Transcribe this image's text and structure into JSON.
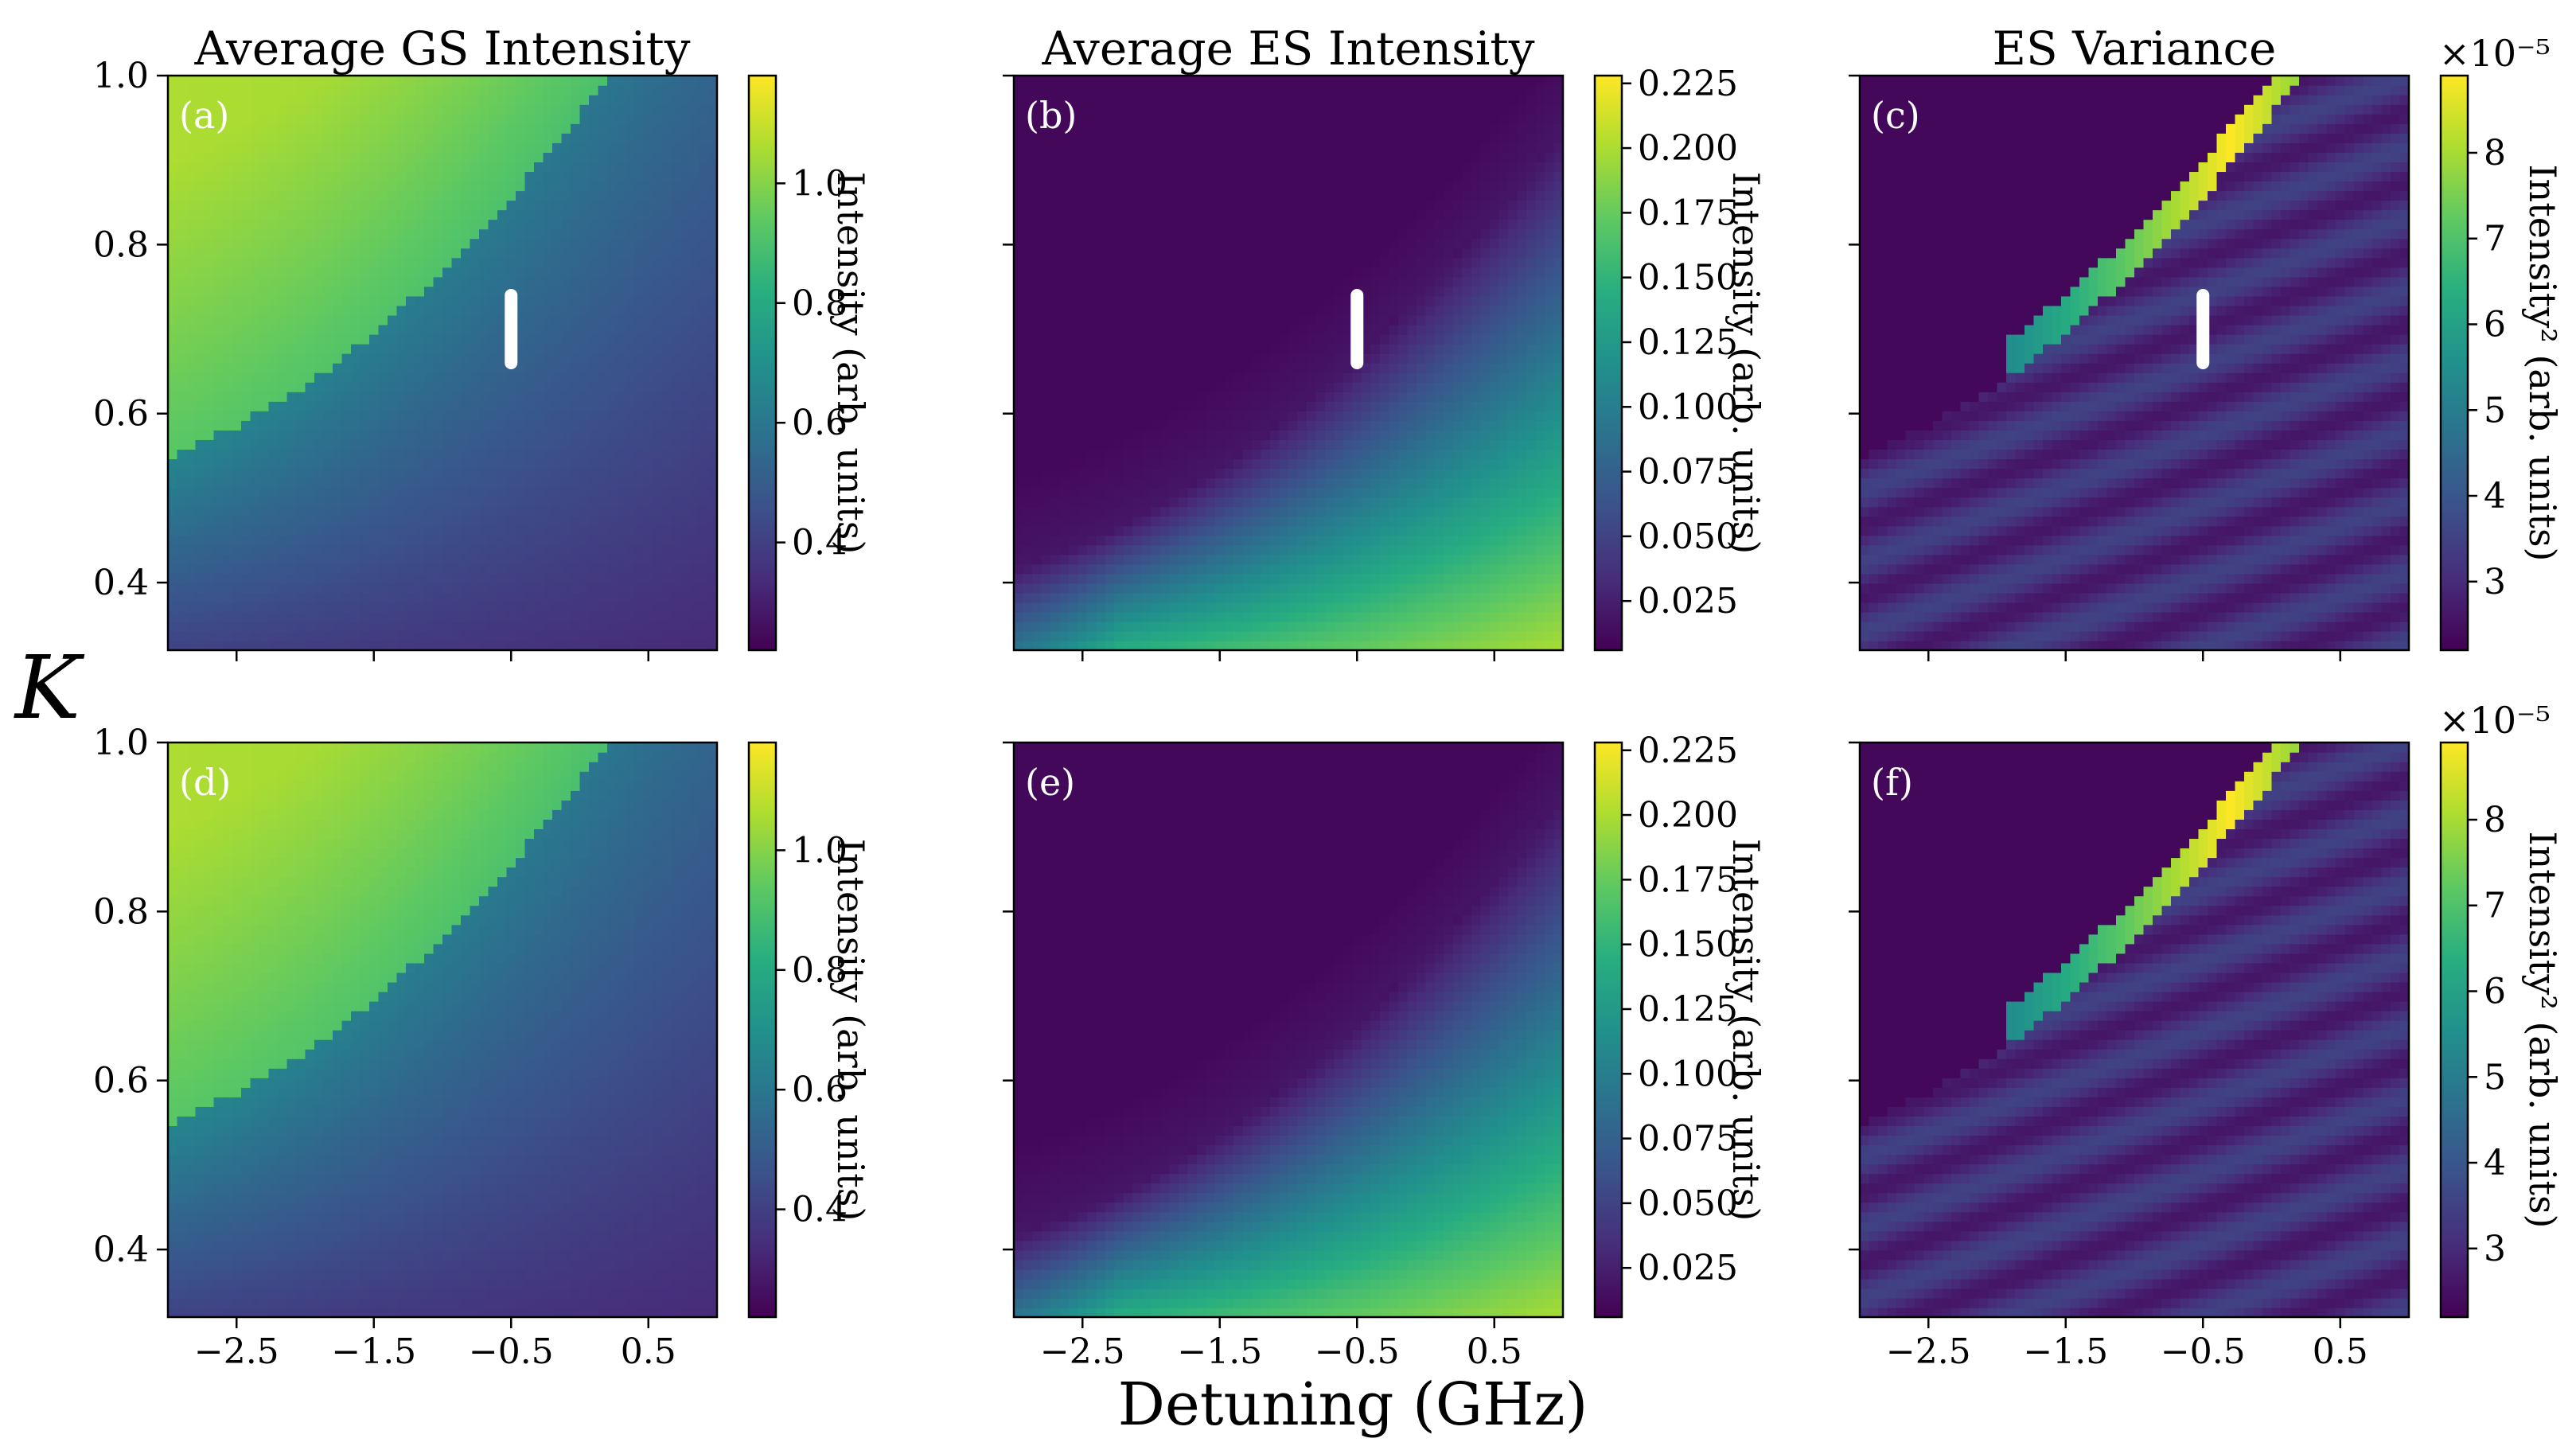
{
  "figure": {
    "y_axis_label": "K",
    "x_axis_label": "Detuning (GHz)"
  },
  "chart_data": [
    {
      "id": "a",
      "type": "heatmap",
      "title": "Average GS Intensity",
      "panel_label": "(a)",
      "map": "gs",
      "marker": true,
      "x_range": [
        -3.0,
        1.0
      ],
      "y_range": [
        0.32,
        1.0
      ],
      "x_ticks": [
        -2.5,
        -1.5,
        -0.5,
        0.5
      ],
      "x_tick_labels": [],
      "y_ticks": [
        0.4,
        0.6,
        0.8,
        1.0
      ],
      "y_tick_labels": [
        "0.4",
        "0.6",
        "0.8",
        "1.0"
      ],
      "colorbar": {
        "label": "Intensity (arb. units)",
        "range": [
          0.22,
          1.18
        ],
        "ticks": [
          0.4,
          0.6,
          0.8,
          1.0
        ],
        "tick_labels": [
          "0.4",
          "0.6",
          "0.8",
          "1.0"
        ],
        "multiplier_text": ""
      }
    },
    {
      "id": "b",
      "type": "heatmap",
      "title": "Average ES Intensity",
      "panel_label": "(b)",
      "map": "es",
      "marker": true,
      "x_range": [
        -3.0,
        1.0
      ],
      "y_range": [
        0.32,
        1.0
      ],
      "x_ticks": [
        -2.5,
        -1.5,
        -0.5,
        0.5
      ],
      "x_tick_labels": [],
      "y_ticks": [
        0.4,
        0.6,
        0.8,
        1.0
      ],
      "y_tick_labels": [],
      "colorbar": {
        "label": "Intensity (arb. units)",
        "range": [
          0.006,
          0.228
        ],
        "ticks": [
          0.025,
          0.05,
          0.075,
          0.1,
          0.125,
          0.15,
          0.175,
          0.2,
          0.225
        ],
        "tick_labels": [
          "0.025",
          "0.050",
          "0.075",
          "0.100",
          "0.125",
          "0.150",
          "0.175",
          "0.200",
          "0.225"
        ],
        "multiplier_text": ""
      }
    },
    {
      "id": "c",
      "type": "heatmap",
      "title": "ES Variance",
      "panel_label": "(c)",
      "map": "var",
      "marker": true,
      "x_range": [
        -3.0,
        1.0
      ],
      "y_range": [
        0.32,
        1.0
      ],
      "x_ticks": [
        -2.5,
        -1.5,
        -0.5,
        0.5
      ],
      "x_tick_labels": [],
      "y_ticks": [
        0.4,
        0.6,
        0.8,
        1.0
      ],
      "y_tick_labels": [],
      "colorbar": {
        "label": "Intensity² (arb. units)",
        "range": [
          2.2,
          8.9
        ],
        "ticks": [
          3,
          4,
          5,
          6,
          7,
          8
        ],
        "tick_labels": [
          "3",
          "4",
          "5",
          "6",
          "7",
          "8"
        ],
        "multiplier_text": "×10⁻⁵"
      }
    },
    {
      "id": "d",
      "type": "heatmap",
      "title": "",
      "panel_label": "(d)",
      "map": "gs",
      "marker": false,
      "x_range": [
        -3.0,
        1.0
      ],
      "y_range": [
        0.32,
        1.0
      ],
      "x_ticks": [
        -2.5,
        -1.5,
        -0.5,
        0.5
      ],
      "x_tick_labels": [
        "−2.5",
        "−1.5",
        "−0.5",
        "0.5"
      ],
      "y_ticks": [
        0.4,
        0.6,
        0.8,
        1.0
      ],
      "y_tick_labels": [
        "0.4",
        "0.6",
        "0.8",
        "1.0"
      ],
      "colorbar": {
        "label": "Intensity (arb. units)",
        "range": [
          0.22,
          1.18
        ],
        "ticks": [
          0.4,
          0.6,
          0.8,
          1.0
        ],
        "tick_labels": [
          "0.4",
          "0.6",
          "0.8",
          "1.0"
        ],
        "multiplier_text": ""
      }
    },
    {
      "id": "e",
      "type": "heatmap",
      "title": "",
      "panel_label": "(e)",
      "map": "es",
      "marker": false,
      "x_range": [
        -3.0,
        1.0
      ],
      "y_range": [
        0.32,
        1.0
      ],
      "x_ticks": [
        -2.5,
        -1.5,
        -0.5,
        0.5
      ],
      "x_tick_labels": [
        "−2.5",
        "−1.5",
        "−0.5",
        "0.5"
      ],
      "y_ticks": [
        0.4,
        0.6,
        0.8,
        1.0
      ],
      "y_tick_labels": [],
      "colorbar": {
        "label": "Intensity (arb. units)",
        "range": [
          0.006,
          0.228
        ],
        "ticks": [
          0.025,
          0.05,
          0.075,
          0.1,
          0.125,
          0.15,
          0.175,
          0.2,
          0.225
        ],
        "tick_labels": [
          "0.025",
          "0.050",
          "0.075",
          "0.100",
          "0.125",
          "0.150",
          "0.175",
          "0.200",
          "0.225"
        ],
        "multiplier_text": ""
      }
    },
    {
      "id": "f",
      "type": "heatmap",
      "title": "",
      "panel_label": "(f)",
      "map": "var",
      "marker": false,
      "x_range": [
        -3.0,
        1.0
      ],
      "y_range": [
        0.32,
        1.0
      ],
      "x_ticks": [
        -2.5,
        -1.5,
        -0.5,
        0.5
      ],
      "x_tick_labels": [
        "−2.5",
        "−1.5",
        "−0.5",
        "0.5"
      ],
      "y_ticks": [
        0.4,
        0.6,
        0.8,
        1.0
      ],
      "y_tick_labels": [],
      "colorbar": {
        "label": "Intensity² (arb. units)",
        "range": [
          2.2,
          8.9
        ],
        "ticks": [
          3,
          4,
          5,
          6,
          7,
          8
        ],
        "tick_labels": [
          "3",
          "4",
          "5",
          "6",
          "7",
          "8"
        ],
        "multiplier_text": "×10⁻⁵"
      }
    }
  ]
}
